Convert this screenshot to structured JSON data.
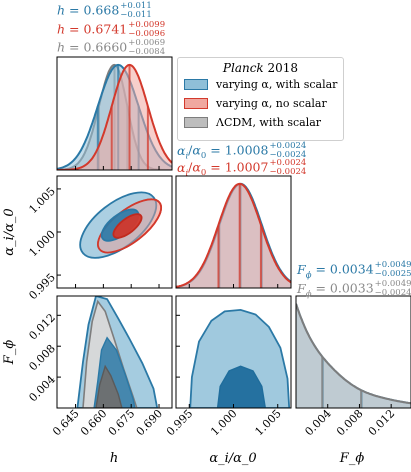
{
  "chart_data": {
    "type": "corner",
    "title": "",
    "parameters": [
      {
        "name": "h",
        "label": "h",
        "range": [
          0.635,
          0.697
        ],
        "ticks": [
          0.645,
          0.66,
          0.675,
          0.69
        ],
        "tick_labels": [
          "0.645",
          "0.660",
          "0.675",
          "0.690"
        ]
      },
      {
        "name": "alpha_ratio",
        "label": "α_i/α_0",
        "range": [
          0.9935,
          1.0065
        ],
        "ticks": [
          0.995,
          1.0,
          1.005
        ],
        "tick_labels": [
          "0.995",
          "1.000",
          "1.005"
        ]
      },
      {
        "name": "F_phi",
        "label": "F_ϕ",
        "range": [
          0.0,
          0.0145
        ],
        "ticks": [
          0.004,
          0.008,
          0.012
        ],
        "tick_labels": [
          "0.004",
          "0.008",
          "0.012"
        ]
      }
    ],
    "legend": {
      "title_italic": "Planck",
      "title_year": "2018",
      "placement": "inside, upper right of triangle"
    },
    "series": [
      {
        "name": "varying α, with scalar",
        "color": "#2b79a6",
        "fill": "#8fbfd8",
        "h": {
          "mean": 0.668,
          "plus": 0.011,
          "minus": 0.011
        },
        "alpha_ratio": {
          "mean": 1.0008,
          "plus": 0.0024,
          "minus": 0.0024
        },
        "F_phi": {
          "mean": 0.0034,
          "plus": 0.0049,
          "minus": 0.0025
        }
      },
      {
        "name": "varying α, no scalar",
        "color": "#d3392c",
        "fill": "#f0a8a0",
        "h": {
          "mean": 0.6741,
          "plus": 0.0099,
          "minus": 0.0096
        },
        "alpha_ratio": {
          "mean": 1.0007,
          "plus": 0.0024,
          "minus": 0.0024
        }
      },
      {
        "name": "ΛCDM, with scalar",
        "color": "#7d7d7d",
        "fill": "#bdbdbd",
        "h": {
          "mean": 0.666,
          "plus": 0.0069,
          "minus": 0.0084
        },
        "F_phi": {
          "mean": 0.0033,
          "plus": 0.0049,
          "minus": 0.0024
        }
      }
    ],
    "annotations": {
      "h_blue": {
        "sym": "h",
        "val": "0.668",
        "up": "+0.011",
        "down": "−0.011"
      },
      "h_red": {
        "sym": "h",
        "val": "0.6741",
        "up": "+0.0099",
        "down": "−0.0096"
      },
      "h_grey": {
        "sym": "h",
        "val": "0.6660",
        "up": "+0.0069",
        "down": "−0.0084"
      },
      "a_blue": {
        "sym": "α_i/α_0",
        "val": "1.0008",
        "up": "+0.0024",
        "down": "−0.0024"
      },
      "a_red": {
        "sym": "α_i/α_0",
        "val": "1.0007",
        "up": "+0.0024",
        "down": "−0.0024"
      },
      "f_blue": {
        "sym": "F_ϕ",
        "val": "0.0034",
        "up": "+0.0049",
        "down": "−0.0025"
      },
      "f_grey": {
        "sym": "F_ϕ",
        "val": "0.0033",
        "up": "+0.0049",
        "down": "−0.0024"
      }
    },
    "grid": false
  }
}
